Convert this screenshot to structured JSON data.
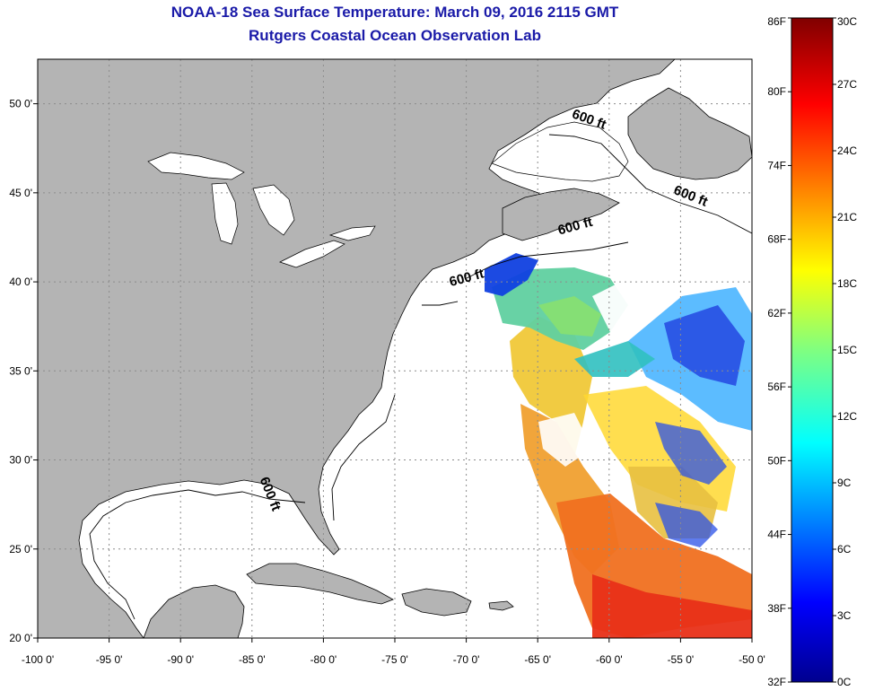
{
  "header": {
    "title": "NOAA-18 Sea Surface Temperature:  March 09, 2016 2115 GMT",
    "subtitle": "Rutgers Coastal Ocean Observation Lab"
  },
  "map": {
    "lon_range": [
      -100,
      -50
    ],
    "lat_range": [
      20,
      52.5
    ],
    "lat_ticks": [
      {
        "value": 50,
        "label": "50 0'"
      },
      {
        "value": 45,
        "label": "45 0'"
      },
      {
        "value": 40,
        "label": "40 0'"
      },
      {
        "value": 35,
        "label": "35 0'"
      },
      {
        "value": 30,
        "label": "30 0'"
      },
      {
        "value": 25,
        "label": "25 0'"
      },
      {
        "value": 20,
        "label": "20 0'"
      }
    ],
    "lon_ticks": [
      {
        "value": -100,
        "label": "-100 0'"
      },
      {
        "value": -95,
        "label": "-95 0'"
      },
      {
        "value": -90,
        "label": "-90 0'"
      },
      {
        "value": -85,
        "label": "-85 0'"
      },
      {
        "value": -80,
        "label": "-80 0'"
      },
      {
        "value": -75,
        "label": "-75 0'"
      },
      {
        "value": -70,
        "label": "-70 0'"
      },
      {
        "value": -65,
        "label": "-65 0'"
      },
      {
        "value": -60,
        "label": "-60 0'"
      },
      {
        "value": -55,
        "label": "-55 0'"
      },
      {
        "value": -50,
        "label": "-50 0'"
      }
    ],
    "contour_labels": [
      {
        "text": "600 ft",
        "lon": -61.5,
        "lat": 48.9,
        "angle": 20
      },
      {
        "text": "600 ft",
        "lon": -54.4,
        "lat": 44.6,
        "angle": 22
      },
      {
        "text": "600 ft",
        "lon": -62.3,
        "lat": 42.9,
        "angle": -15
      },
      {
        "text": "600 ft",
        "lon": -69.9,
        "lat": 40.0,
        "angle": -15
      },
      {
        "text": "600 ft",
        "lon": -84.0,
        "lat": 28.0,
        "angle": 68
      }
    ],
    "colors": {
      "land": "#b4b4b4",
      "ocean": "#ffffff",
      "outline": "#000000",
      "grid": "#8c8c8c"
    }
  },
  "colorbar": {
    "fahrenheit_labels": [
      "86F",
      "80F",
      "74F",
      "68F",
      "62F",
      "56F",
      "50F",
      "44F",
      "38F",
      "32F"
    ],
    "celsius_labels": [
      "30C",
      "27C",
      "24C",
      "21C",
      "18C",
      "15C",
      "12C",
      "9C",
      "6C",
      "3C",
      "0C"
    ],
    "range_c": [
      0,
      30
    ]
  }
}
